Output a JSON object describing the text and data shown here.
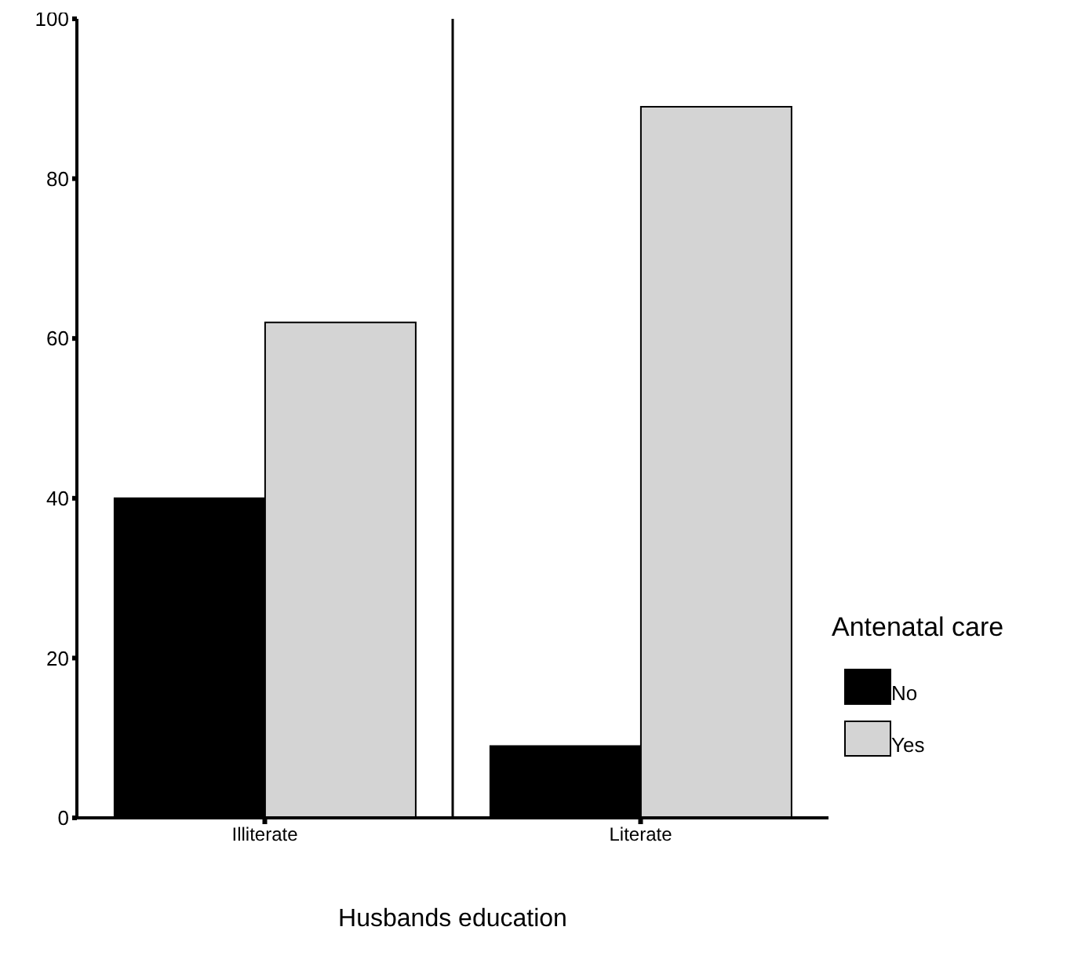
{
  "chart_data": {
    "type": "bar",
    "xlabel": "Husbands education",
    "legend_title": "Antenatal care",
    "categories": [
      "Illiterate",
      "Literate"
    ],
    "series": [
      {
        "name": "No",
        "color": "#000000",
        "values": [
          40,
          9
        ]
      },
      {
        "name": "Yes",
        "color": "#d4d4d4",
        "values": [
          62,
          89
        ]
      }
    ],
    "ylim": [
      0,
      100
    ],
    "yticks": [
      0,
      20,
      40,
      60,
      80,
      100
    ],
    "legend": "right",
    "grid": "x"
  }
}
